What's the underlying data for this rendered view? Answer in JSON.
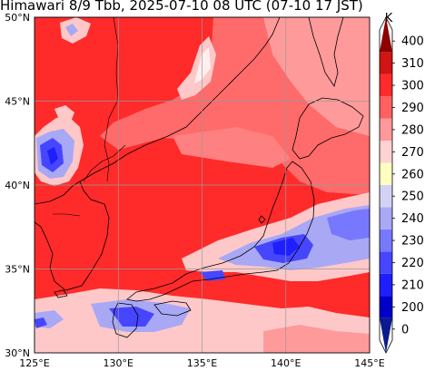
{
  "title": "Himawari 8/9 Tbb, 2025-07-10 08 UTC (07-10 17 JST)",
  "map": {
    "lon_range": [
      125,
      145
    ],
    "lat_range": [
      30,
      50
    ],
    "lon_ticks": [
      "125°E",
      "130°E",
      "135°E",
      "140°E",
      "145°E"
    ],
    "lat_ticks": [
      "30°N",
      "35°N",
      "40°N",
      "45°N",
      "50°N"
    ],
    "gridlines": true
  },
  "colorbar": {
    "unit": "K",
    "ticks": [
      "0",
      "200",
      "210",
      "220",
      "230",
      "240",
      "250",
      "260",
      "270",
      "280",
      "290",
      "300",
      "310",
      "400"
    ],
    "colors": [
      "#0a1a8c",
      "#0000c8",
      "#1e1eff",
      "#4646ff",
      "#7878ff",
      "#a8a8f5",
      "#d2d2f5",
      "#ffffc0",
      "#ffd2d2",
      "#ff9a9a",
      "#ff6060",
      "#ff2a2a",
      "#d21414",
      "#8c0000"
    ]
  }
}
